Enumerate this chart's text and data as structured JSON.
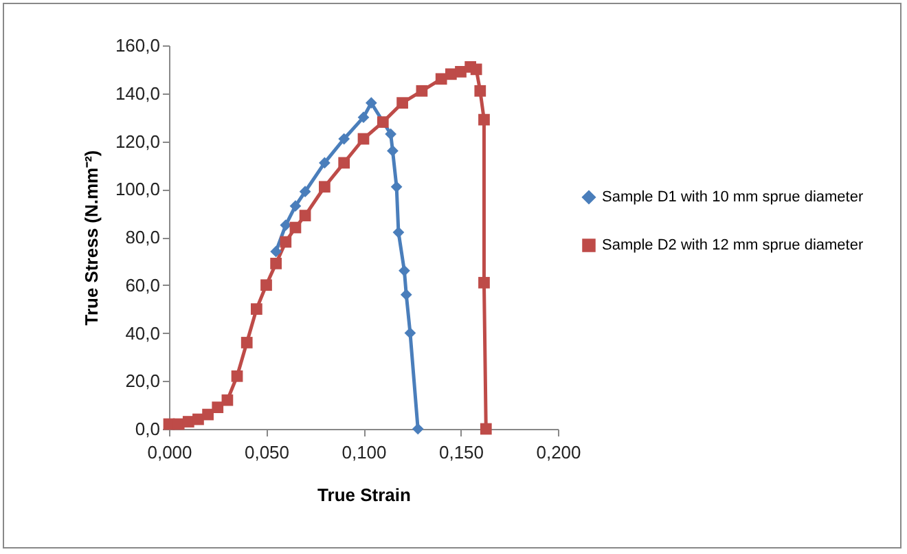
{
  "chart_data": {
    "type": "line",
    "xlabel": "True Strain",
    "ylabel": "True Stress (N.mm⁻²)",
    "xlim": [
      0,
      0.2
    ],
    "xticks": [
      {
        "value": 0,
        "label": "0,000"
      },
      {
        "value": 0.05,
        "label": "0,050"
      },
      {
        "value": 0.1,
        "label": "0,100"
      },
      {
        "value": 0.15,
        "label": "0,150"
      },
      {
        "value": 0.2,
        "label": "0,200"
      }
    ],
    "ylim": [
      0,
      160
    ],
    "yticks": [
      {
        "value": 0,
        "label": "0,0"
      },
      {
        "value": 20,
        "label": "20,0"
      },
      {
        "value": 40,
        "label": "40,0"
      },
      {
        "value": 60,
        "label": "60,0"
      },
      {
        "value": 80,
        "label": "80,0"
      },
      {
        "value": 100,
        "label": "100,0"
      },
      {
        "value": 120,
        "label": "120,0"
      },
      {
        "value": 140,
        "label": "140,0"
      },
      {
        "value": 160,
        "label": "160,0"
      }
    ],
    "grid": false,
    "legend": "right",
    "series": [
      {
        "name": "Sample D1 with 10 mm sprue diameter",
        "color": "#4a7ebb",
        "marker": "diamond",
        "x": [
          0.055,
          0.06,
          0.065,
          0.07,
          0.08,
          0.09,
          0.1,
          0.104,
          0.114,
          0.115,
          0.117,
          0.118,
          0.121,
          0.122,
          0.124,
          0.128
        ],
        "values": [
          74,
          85,
          93,
          99,
          111,
          121,
          130,
          136,
          123,
          116,
          101,
          82,
          66,
          56,
          40,
          0
        ]
      },
      {
        "name": "Sample D2 with 12 mm sprue diameter",
        "color": "#be4b48",
        "marker": "square",
        "x": [
          0,
          0.005,
          0.01,
          0.015,
          0.02,
          0.025,
          0.03,
          0.035,
          0.04,
          0.045,
          0.05,
          0.055,
          0.06,
          0.065,
          0.07,
          0.08,
          0.09,
          0.1,
          0.11,
          0.12,
          0.13,
          0.14,
          0.145,
          0.15,
          0.155,
          0.158,
          0.16,
          0.162,
          0.162,
          0.163
        ],
        "values": [
          2,
          2,
          3,
          4,
          6,
          9,
          12,
          22,
          36,
          50,
          60,
          69,
          78,
          84,
          89,
          101,
          111,
          121,
          128,
          136,
          141,
          146,
          148,
          149,
          151,
          150,
          141,
          129,
          61,
          0
        ]
      }
    ]
  }
}
